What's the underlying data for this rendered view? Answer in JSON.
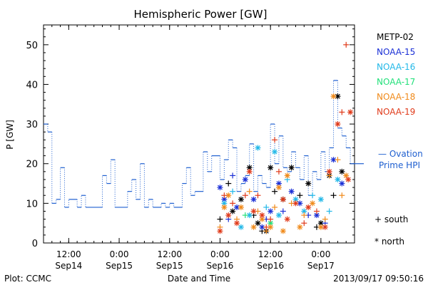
{
  "chart_data": {
    "type": "scatter",
    "title": "Hemispheric Power [GW]",
    "ylabel": "P [GW]",
    "xlabel": "Date and Time",
    "ylim": [
      0,
      55
    ],
    "xlim": [
      "2013-09-14T06:00",
      "2013-09-17T08:00"
    ],
    "yticks": [
      0,
      10,
      20,
      30,
      40,
      50
    ],
    "xticks": [
      {
        "time": "2013-09-14T12:00",
        "line1": "12:00",
        "line2": "Sep14"
      },
      {
        "time": "2013-09-15T00:00",
        "line1": "0:00",
        "line2": "Sep15"
      },
      {
        "time": "2013-09-15T12:00",
        "line1": "12:00",
        "line2": "Sep15"
      },
      {
        "time": "2013-09-16T00:00",
        "line1": "0:00",
        "line2": "Sep16"
      },
      {
        "time": "2013-09-16T12:00",
        "line1": "12:00",
        "line2": "Sep16"
      },
      {
        "time": "2013-09-17T00:00",
        "line1": "0:00",
        "line2": "Sep17"
      }
    ],
    "footer_left": "Plot: CCMC",
    "footer_right": "2013/09/17 09:50:16",
    "marker_legend": {
      "south": "+ south",
      "north": "* north"
    },
    "ovation": {
      "name": "Ovation Prime HPI",
      "name_line1": "— Ovation",
      "name_line2": "Prime HPI",
      "color": "#1e5fd0",
      "points": [
        [
          "2013-09-14T06:00",
          30
        ],
        [
          "2013-09-14T07:00",
          28
        ],
        [
          "2013-09-14T08:00",
          10
        ],
        [
          "2013-09-14T09:00",
          11
        ],
        [
          "2013-09-14T10:00",
          19
        ],
        [
          "2013-09-14T11:00",
          9
        ],
        [
          "2013-09-14T12:00",
          11
        ],
        [
          "2013-09-14T14:00",
          9
        ],
        [
          "2013-09-14T15:00",
          12
        ],
        [
          "2013-09-14T16:00",
          9
        ],
        [
          "2013-09-14T20:00",
          17
        ],
        [
          "2013-09-14T21:00",
          15
        ],
        [
          "2013-09-14T22:00",
          21
        ],
        [
          "2013-09-14T23:00",
          9
        ],
        [
          "2013-09-15T02:00",
          13
        ],
        [
          "2013-09-15T03:00",
          16
        ],
        [
          "2013-09-15T04:00",
          11
        ],
        [
          "2013-09-15T05:00",
          20
        ],
        [
          "2013-09-15T06:00",
          9
        ],
        [
          "2013-09-15T07:00",
          11
        ],
        [
          "2013-09-15T08:00",
          9
        ],
        [
          "2013-09-15T10:00",
          10
        ],
        [
          "2013-09-15T11:00",
          9
        ],
        [
          "2013-09-15T12:00",
          10
        ],
        [
          "2013-09-15T13:00",
          9
        ],
        [
          "2013-09-15T15:00",
          15
        ],
        [
          "2013-09-15T16:00",
          19
        ],
        [
          "2013-09-15T17:00",
          12
        ],
        [
          "2013-09-15T18:00",
          13
        ],
        [
          "2013-09-15T20:00",
          23
        ],
        [
          "2013-09-15T21:00",
          18
        ],
        [
          "2013-09-15T22:00",
          22
        ],
        [
          "2013-09-16T00:00",
          16
        ],
        [
          "2013-09-16T01:00",
          21
        ],
        [
          "2013-09-16T02:00",
          26
        ],
        [
          "2013-09-16T03:00",
          24
        ],
        [
          "2013-09-16T04:00",
          13
        ],
        [
          "2013-09-16T05:00",
          15
        ],
        [
          "2013-09-16T06:00",
          17
        ],
        [
          "2013-09-16T07:00",
          25
        ],
        [
          "2013-09-16T08:00",
          13
        ],
        [
          "2013-09-16T09:00",
          17
        ],
        [
          "2013-09-16T10:00",
          15
        ],
        [
          "2013-09-16T11:00",
          14
        ],
        [
          "2013-09-16T12:00",
          30
        ],
        [
          "2013-09-16T13:00",
          20
        ],
        [
          "2013-09-16T14:00",
          27
        ],
        [
          "2013-09-16T15:00",
          19
        ],
        [
          "2013-09-16T16:00",
          18
        ],
        [
          "2013-09-16T17:00",
          23
        ],
        [
          "2013-09-16T18:00",
          19
        ],
        [
          "2013-09-16T19:00",
          16
        ],
        [
          "2013-09-16T20:00",
          22
        ],
        [
          "2013-09-16T21:00",
          12
        ],
        [
          "2013-09-16T22:00",
          18
        ],
        [
          "2013-09-16T23:00",
          16
        ],
        [
          "2013-09-17T00:00",
          23
        ],
        [
          "2013-09-17T01:00",
          18
        ],
        [
          "2013-09-17T02:00",
          24
        ],
        [
          "2013-09-17T03:00",
          41
        ],
        [
          "2013-09-17T04:00",
          29
        ],
        [
          "2013-09-17T05:00",
          27
        ],
        [
          "2013-09-17T06:00",
          24
        ],
        [
          "2013-09-17T07:00",
          20
        ]
      ]
    },
    "series": [
      {
        "name": "METP-02",
        "color": "#000000",
        "points": [
          [
            "2013-09-16T00:00",
            6,
            "s"
          ],
          [
            "2013-09-16T02:00",
            15,
            "s"
          ],
          [
            "2013-09-16T03:00",
            8,
            "n"
          ],
          [
            "2013-09-16T05:00",
            11,
            "n"
          ],
          [
            "2013-09-16T07:00",
            19,
            "n"
          ],
          [
            "2013-09-16T08:00",
            7,
            "s"
          ],
          [
            "2013-09-16T09:00",
            5,
            "n"
          ],
          [
            "2013-09-16T10:00",
            3,
            "s"
          ],
          [
            "2013-09-16T11:00",
            3,
            "n"
          ],
          [
            "2013-09-16T12:00",
            19,
            "n"
          ],
          [
            "2013-09-16T13:00",
            13,
            "s"
          ],
          [
            "2013-09-16T15:00",
            11,
            "n"
          ],
          [
            "2013-09-16T17:00",
            19,
            "n"
          ],
          [
            "2013-09-16T19:00",
            12,
            "s"
          ],
          [
            "2013-09-16T21:00",
            15,
            "n"
          ],
          [
            "2013-09-16T23:00",
            4,
            "s"
          ],
          [
            "2013-09-17T00:00",
            5,
            "n"
          ],
          [
            "2013-09-17T02:00",
            17,
            "n"
          ],
          [
            "2013-09-17T03:00",
            12,
            "s"
          ],
          [
            "2013-09-17T04:00",
            37,
            "n"
          ],
          [
            "2013-09-17T05:00",
            18,
            "n"
          ]
        ]
      },
      {
        "name": "NOAA-15",
        "color": "#1a2fd6",
        "points": [
          [
            "2013-09-16T00:00",
            14,
            "n"
          ],
          [
            "2013-09-16T01:00",
            11,
            "n"
          ],
          [
            "2013-09-16T02:00",
            6,
            "s"
          ],
          [
            "2013-09-16T03:00",
            17,
            "s"
          ],
          [
            "2013-09-16T04:00",
            9,
            "n"
          ],
          [
            "2013-09-16T06:00",
            16,
            "n"
          ],
          [
            "2013-09-16T08:00",
            11,
            "n"
          ],
          [
            "2013-09-16T10:00",
            4,
            "n"
          ],
          [
            "2013-09-16T11:00",
            6,
            "s"
          ],
          [
            "2013-09-16T12:00",
            8,
            "n"
          ],
          [
            "2013-09-16T14:00",
            15,
            "n"
          ],
          [
            "2013-09-16T15:00",
            8,
            "s"
          ],
          [
            "2013-09-16T17:00",
            13,
            "n"
          ],
          [
            "2013-09-16T19:00",
            10,
            "n"
          ],
          [
            "2013-09-16T21:00",
            7,
            "s"
          ],
          [
            "2013-09-16T23:00",
            7,
            "n"
          ],
          [
            "2013-09-17T01:00",
            5,
            "s"
          ],
          [
            "2013-09-17T03:00",
            21,
            "n"
          ],
          [
            "2013-09-17T05:00",
            15,
            "n"
          ]
        ]
      },
      {
        "name": "NOAA-16",
        "color": "#22b8e8",
        "points": [
          [
            "2013-09-16T01:00",
            10,
            "n"
          ],
          [
            "2013-09-16T03:00",
            13,
            "s"
          ],
          [
            "2013-09-16T05:00",
            4,
            "n"
          ],
          [
            "2013-09-16T07:00",
            7,
            "n"
          ],
          [
            "2013-09-16T09:00",
            24,
            "n"
          ],
          [
            "2013-09-16T11:00",
            9,
            "s"
          ],
          [
            "2013-09-16T13:00",
            23,
            "n"
          ],
          [
            "2013-09-16T14:00",
            7,
            "n"
          ],
          [
            "2013-09-16T16:00",
            16,
            "s"
          ],
          [
            "2013-09-16T18:00",
            11,
            "n"
          ],
          [
            "2013-09-16T20:00",
            8,
            "n"
          ],
          [
            "2013-09-16T22:00",
            12,
            "s"
          ],
          [
            "2013-09-17T00:00",
            11,
            "n"
          ],
          [
            "2013-09-17T02:00",
            8,
            "s"
          ],
          [
            "2013-09-17T04:00",
            16,
            "n"
          ]
        ]
      },
      {
        "name": "NOAA-17",
        "color": "#22e07a",
        "points": [
          [
            "2013-09-16T06:00",
            7,
            "s"
          ],
          [
            "2013-09-16T12:00",
            5,
            "n"
          ]
        ]
      },
      {
        "name": "NOAA-18",
        "color": "#f08a1a",
        "points": [
          [
            "2013-09-16T00:00",
            4,
            "s"
          ],
          [
            "2013-09-16T01:00",
            9,
            "n"
          ],
          [
            "2013-09-16T02:00",
            12,
            "n"
          ],
          [
            "2013-09-16T04:00",
            6,
            "s"
          ],
          [
            "2013-09-16T05:00",
            9,
            "n"
          ],
          [
            "2013-09-16T07:00",
            13,
            "s"
          ],
          [
            "2013-09-16T08:00",
            4,
            "n"
          ],
          [
            "2013-09-16T09:00",
            8,
            "s"
          ],
          [
            "2013-09-16T10:00",
            6,
            "n"
          ],
          [
            "2013-09-16T11:00",
            3,
            "s"
          ],
          [
            "2013-09-16T12:00",
            4,
            "n"
          ],
          [
            "2013-09-16T13:00",
            9,
            "s"
          ],
          [
            "2013-09-16T14:00",
            14,
            "n"
          ],
          [
            "2013-09-16T15:00",
            3,
            "n"
          ],
          [
            "2013-09-16T16:00",
            17,
            "n"
          ],
          [
            "2013-09-16T17:00",
            10,
            "s"
          ],
          [
            "2013-09-16T19:00",
            4,
            "n"
          ],
          [
            "2013-09-16T20:00",
            7,
            "s"
          ],
          [
            "2013-09-16T22:00",
            10,
            "n"
          ],
          [
            "2013-09-17T00:00",
            4,
            "n"
          ],
          [
            "2013-09-17T01:00",
            6,
            "s"
          ],
          [
            "2013-09-17T02:00",
            17,
            "s"
          ],
          [
            "2013-09-17T03:00",
            37,
            "n"
          ],
          [
            "2013-09-17T04:00",
            21,
            "s"
          ],
          [
            "2013-09-17T05:00",
            12,
            "s"
          ],
          [
            "2013-09-17T06:00",
            17,
            "n"
          ]
        ]
      },
      {
        "name": "NOAA-19",
        "color": "#e03a1a",
        "points": [
          [
            "2013-09-16T00:00",
            3,
            "n"
          ],
          [
            "2013-09-16T01:00",
            12,
            "s"
          ],
          [
            "2013-09-16T02:00",
            7,
            "n"
          ],
          [
            "2013-09-16T03:00",
            10,
            "s"
          ],
          [
            "2013-09-16T04:00",
            5,
            "n"
          ],
          [
            "2013-09-16T06:00",
            12,
            "s"
          ],
          [
            "2013-09-16T07:00",
            18,
            "n"
          ],
          [
            "2013-09-16T08:00",
            8,
            "n"
          ],
          [
            "2013-09-16T09:00",
            12,
            "s"
          ],
          [
            "2013-09-16T10:00",
            7,
            "n"
          ],
          [
            "2013-09-16T11:00",
            4,
            "s"
          ],
          [
            "2013-09-16T12:00",
            6,
            "s"
          ],
          [
            "2013-09-16T13:00",
            26,
            "s"
          ],
          [
            "2013-09-16T14:00",
            18,
            "s"
          ],
          [
            "2013-09-16T15:00",
            11,
            "n"
          ],
          [
            "2013-09-16T16:00",
            6,
            "n"
          ],
          [
            "2013-09-16T18:00",
            10,
            "n"
          ],
          [
            "2013-09-16T20:00",
            5,
            "s"
          ],
          [
            "2013-09-16T21:00",
            9,
            "n"
          ],
          [
            "2013-09-16T23:00",
            8,
            "s"
          ],
          [
            "2013-09-17T01:00",
            4,
            "n"
          ],
          [
            "2013-09-17T02:00",
            18,
            "n"
          ],
          [
            "2013-09-17T04:00",
            30,
            "n"
          ],
          [
            "2013-09-17T05:00",
            33,
            "s"
          ],
          [
            "2013-09-17T06:00",
            50,
            "s"
          ],
          [
            "2013-09-17T07:00",
            33,
            "n"
          ],
          [
            "2013-09-17T06:30",
            16,
            "n"
          ]
        ]
      }
    ]
  }
}
